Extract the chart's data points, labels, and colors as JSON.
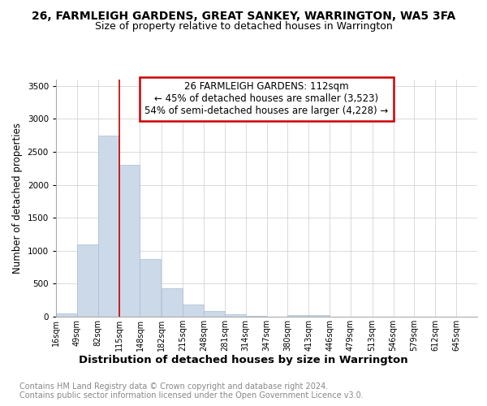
{
  "title": "26, FARMLEIGH GARDENS, GREAT SANKEY, WARRINGTON, WA5 3FA",
  "subtitle": "Size of property relative to detached houses in Warrington",
  "xlabel": "Distribution of detached houses by size in Warrington",
  "ylabel": "Number of detached properties",
  "property_label": "26 FARMLEIGH GARDENS: 112sqm",
  "annotation_line1": "← 45% of detached houses are smaller (3,523)",
  "annotation_line2": "54% of semi-detached houses are larger (4,228) →",
  "bar_color": "#ccd9e8",
  "bar_edge_color": "#a8bfd4",
  "vline_color": "#cc0000",
  "annotation_edge_color": "#cc0000",
  "footer_line1": "Contains HM Land Registry data © Crown copyright and database right 2024.",
  "footer_line2": "Contains public sector information licensed under the Open Government Licence v3.0.",
  "bin_edges": [
    16,
    49,
    82,
    115,
    148,
    182,
    215,
    248,
    281,
    314,
    347,
    380,
    413,
    446,
    479,
    513,
    546,
    579,
    612,
    645,
    678
  ],
  "counts": [
    50,
    1100,
    2750,
    2300,
    880,
    430,
    180,
    90,
    35,
    15,
    5,
    30,
    20,
    2,
    0,
    0,
    0,
    0,
    0,
    0
  ],
  "vline_x": 115,
  "ylim": [
    0,
    3600
  ],
  "title_fontsize": 10,
  "subtitle_fontsize": 9,
  "ylabel_fontsize": 8.5,
  "xlabel_fontsize": 9.5,
  "tick_fontsize": 7,
  "annotation_fontsize": 8.5,
  "footer_fontsize": 7,
  "background_color": "#ffffff",
  "grid_color": "#cccccc"
}
